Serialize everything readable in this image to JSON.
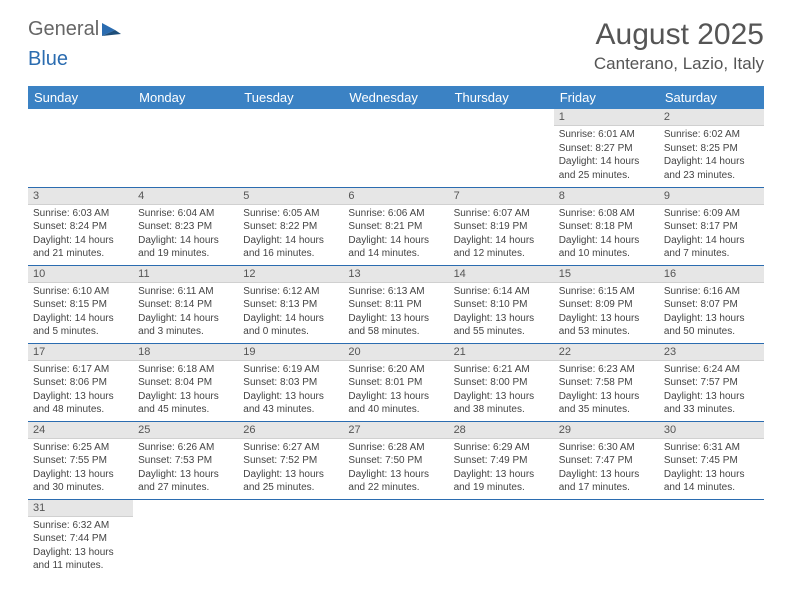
{
  "logo": {
    "part1": "General",
    "part2": "Blue"
  },
  "title": "August 2025",
  "location": "Canterano, Lazio, Italy",
  "colors": {
    "header_bg": "#3b82c4",
    "header_text": "#ffffff",
    "daynum_bg": "#e6e6e6",
    "row_border": "#2b6cb0",
    "body_text": "#444444",
    "title_text": "#555555"
  },
  "weekdays": [
    "Sunday",
    "Monday",
    "Tuesday",
    "Wednesday",
    "Thursday",
    "Friday",
    "Saturday"
  ],
  "weeks": [
    [
      null,
      null,
      null,
      null,
      null,
      {
        "n": "1",
        "sr": "Sunrise: 6:01 AM",
        "ss": "Sunset: 8:27 PM",
        "d1": "Daylight: 14 hours",
        "d2": "and 25 minutes."
      },
      {
        "n": "2",
        "sr": "Sunrise: 6:02 AM",
        "ss": "Sunset: 8:25 PM",
        "d1": "Daylight: 14 hours",
        "d2": "and 23 minutes."
      }
    ],
    [
      {
        "n": "3",
        "sr": "Sunrise: 6:03 AM",
        "ss": "Sunset: 8:24 PM",
        "d1": "Daylight: 14 hours",
        "d2": "and 21 minutes."
      },
      {
        "n": "4",
        "sr": "Sunrise: 6:04 AM",
        "ss": "Sunset: 8:23 PM",
        "d1": "Daylight: 14 hours",
        "d2": "and 19 minutes."
      },
      {
        "n": "5",
        "sr": "Sunrise: 6:05 AM",
        "ss": "Sunset: 8:22 PM",
        "d1": "Daylight: 14 hours",
        "d2": "and 16 minutes."
      },
      {
        "n": "6",
        "sr": "Sunrise: 6:06 AM",
        "ss": "Sunset: 8:21 PM",
        "d1": "Daylight: 14 hours",
        "d2": "and 14 minutes."
      },
      {
        "n": "7",
        "sr": "Sunrise: 6:07 AM",
        "ss": "Sunset: 8:19 PM",
        "d1": "Daylight: 14 hours",
        "d2": "and 12 minutes."
      },
      {
        "n": "8",
        "sr": "Sunrise: 6:08 AM",
        "ss": "Sunset: 8:18 PM",
        "d1": "Daylight: 14 hours",
        "d2": "and 10 minutes."
      },
      {
        "n": "9",
        "sr": "Sunrise: 6:09 AM",
        "ss": "Sunset: 8:17 PM",
        "d1": "Daylight: 14 hours",
        "d2": "and 7 minutes."
      }
    ],
    [
      {
        "n": "10",
        "sr": "Sunrise: 6:10 AM",
        "ss": "Sunset: 8:15 PM",
        "d1": "Daylight: 14 hours",
        "d2": "and 5 minutes."
      },
      {
        "n": "11",
        "sr": "Sunrise: 6:11 AM",
        "ss": "Sunset: 8:14 PM",
        "d1": "Daylight: 14 hours",
        "d2": "and 3 minutes."
      },
      {
        "n": "12",
        "sr": "Sunrise: 6:12 AM",
        "ss": "Sunset: 8:13 PM",
        "d1": "Daylight: 14 hours",
        "d2": "and 0 minutes."
      },
      {
        "n": "13",
        "sr": "Sunrise: 6:13 AM",
        "ss": "Sunset: 8:11 PM",
        "d1": "Daylight: 13 hours",
        "d2": "and 58 minutes."
      },
      {
        "n": "14",
        "sr": "Sunrise: 6:14 AM",
        "ss": "Sunset: 8:10 PM",
        "d1": "Daylight: 13 hours",
        "d2": "and 55 minutes."
      },
      {
        "n": "15",
        "sr": "Sunrise: 6:15 AM",
        "ss": "Sunset: 8:09 PM",
        "d1": "Daylight: 13 hours",
        "d2": "and 53 minutes."
      },
      {
        "n": "16",
        "sr": "Sunrise: 6:16 AM",
        "ss": "Sunset: 8:07 PM",
        "d1": "Daylight: 13 hours",
        "d2": "and 50 minutes."
      }
    ],
    [
      {
        "n": "17",
        "sr": "Sunrise: 6:17 AM",
        "ss": "Sunset: 8:06 PM",
        "d1": "Daylight: 13 hours",
        "d2": "and 48 minutes."
      },
      {
        "n": "18",
        "sr": "Sunrise: 6:18 AM",
        "ss": "Sunset: 8:04 PM",
        "d1": "Daylight: 13 hours",
        "d2": "and 45 minutes."
      },
      {
        "n": "19",
        "sr": "Sunrise: 6:19 AM",
        "ss": "Sunset: 8:03 PM",
        "d1": "Daylight: 13 hours",
        "d2": "and 43 minutes."
      },
      {
        "n": "20",
        "sr": "Sunrise: 6:20 AM",
        "ss": "Sunset: 8:01 PM",
        "d1": "Daylight: 13 hours",
        "d2": "and 40 minutes."
      },
      {
        "n": "21",
        "sr": "Sunrise: 6:21 AM",
        "ss": "Sunset: 8:00 PM",
        "d1": "Daylight: 13 hours",
        "d2": "and 38 minutes."
      },
      {
        "n": "22",
        "sr": "Sunrise: 6:23 AM",
        "ss": "Sunset: 7:58 PM",
        "d1": "Daylight: 13 hours",
        "d2": "and 35 minutes."
      },
      {
        "n": "23",
        "sr": "Sunrise: 6:24 AM",
        "ss": "Sunset: 7:57 PM",
        "d1": "Daylight: 13 hours",
        "d2": "and 33 minutes."
      }
    ],
    [
      {
        "n": "24",
        "sr": "Sunrise: 6:25 AM",
        "ss": "Sunset: 7:55 PM",
        "d1": "Daylight: 13 hours",
        "d2": "and 30 minutes."
      },
      {
        "n": "25",
        "sr": "Sunrise: 6:26 AM",
        "ss": "Sunset: 7:53 PM",
        "d1": "Daylight: 13 hours",
        "d2": "and 27 minutes."
      },
      {
        "n": "26",
        "sr": "Sunrise: 6:27 AM",
        "ss": "Sunset: 7:52 PM",
        "d1": "Daylight: 13 hours",
        "d2": "and 25 minutes."
      },
      {
        "n": "27",
        "sr": "Sunrise: 6:28 AM",
        "ss": "Sunset: 7:50 PM",
        "d1": "Daylight: 13 hours",
        "d2": "and 22 minutes."
      },
      {
        "n": "28",
        "sr": "Sunrise: 6:29 AM",
        "ss": "Sunset: 7:49 PM",
        "d1": "Daylight: 13 hours",
        "d2": "and 19 minutes."
      },
      {
        "n": "29",
        "sr": "Sunrise: 6:30 AM",
        "ss": "Sunset: 7:47 PM",
        "d1": "Daylight: 13 hours",
        "d2": "and 17 minutes."
      },
      {
        "n": "30",
        "sr": "Sunrise: 6:31 AM",
        "ss": "Sunset: 7:45 PM",
        "d1": "Daylight: 13 hours",
        "d2": "and 14 minutes."
      }
    ],
    [
      {
        "n": "31",
        "sr": "Sunrise: 6:32 AM",
        "ss": "Sunset: 7:44 PM",
        "d1": "Daylight: 13 hours",
        "d2": "and 11 minutes."
      },
      null,
      null,
      null,
      null,
      null,
      null
    ]
  ]
}
